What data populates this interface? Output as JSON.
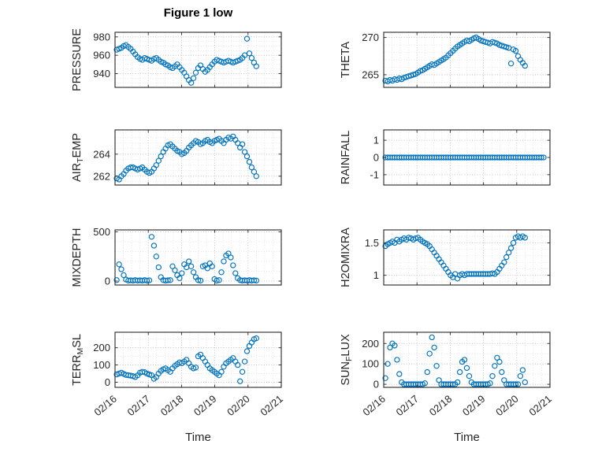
{
  "figure": {
    "title": "Figure 1 low",
    "xlabel": "Time",
    "x_tick_labels": [
      "02/16",
      "02/17",
      "02/18",
      "02/19",
      "02/20",
      "02/21"
    ],
    "marker_color": "#0072BD",
    "axis_color": "#262626",
    "grid_color": "#b4b4b4",
    "minor_grid_color": "#dadada"
  },
  "chart_data": [
    {
      "name": "PRESSURE",
      "type": "scatter",
      "label": {
        "pre": "PRESSURE",
        "sub": "",
        "post": ""
      },
      "xlim": [
        16,
        21
      ],
      "x_unit": "February date (02/16 = 16)",
      "x_start": 16.05,
      "x_step": 0.07,
      "ylim": [
        925,
        985
      ],
      "yticks": [
        940,
        960,
        980
      ],
      "ytick_labels": [
        "940",
        "960",
        "980"
      ],
      "yminor_step": 5,
      "y": [
        966,
        967,
        968,
        970,
        971,
        969,
        967,
        964,
        961,
        958,
        956,
        955,
        957,
        956,
        955,
        954,
        956,
        957,
        955,
        953,
        952,
        950,
        949,
        947,
        946,
        948,
        950,
        947,
        944,
        941,
        937,
        933,
        930,
        935,
        941,
        946,
        949,
        945,
        942,
        944,
        947,
        950,
        953,
        955,
        954,
        953,
        952,
        953,
        954,
        953,
        952,
        953,
        954,
        955,
        957,
        960,
        978,
        962,
        957,
        952,
        948
      ]
    },
    {
      "name": "THETA",
      "type": "scatter",
      "label": {
        "pre": "THETA",
        "sub": "",
        "post": ""
      },
      "xlim": [
        16,
        21
      ],
      "x_unit": "February date (02/16 = 16)",
      "x_start": 16.05,
      "x_step": 0.07,
      "ylim": [
        263.3,
        270.7
      ],
      "yticks": [
        265,
        270
      ],
      "ytick_labels": [
        "265",
        "270"
      ],
      "yminor_step": 1,
      "y": [
        264.2,
        264.1,
        264.3,
        264.2,
        264.4,
        264.3,
        264.5,
        264.4,
        264.6,
        264.7,
        264.8,
        264.9,
        265.0,
        265.1,
        265.3,
        265.5,
        265.6,
        265.8,
        266.0,
        266.2,
        266.4,
        266.3,
        266.5,
        266.7,
        266.9,
        267.1,
        267.3,
        267.6,
        267.9,
        268.2,
        268.5,
        268.8,
        269.0,
        269.2,
        269.4,
        269.6,
        269.5,
        269.7,
        269.9,
        270.0,
        269.8,
        269.6,
        269.5,
        269.4,
        269.3,
        269.2,
        269.4,
        269.3,
        269.2,
        269.0,
        268.9,
        268.8,
        268.7,
        268.6,
        266.5,
        268.4,
        268.2,
        267.5,
        267.0,
        266.6,
        266.2
      ]
    },
    {
      "name": "AIRTEMP",
      "type": "scatter",
      "label": {
        "pre": "AIR",
        "sub": "T",
        "post": "EMP"
      },
      "xlim": [
        16,
        21
      ],
      "x_unit": "February date (02/16 = 16)",
      "x_start": 16.05,
      "x_step": 0.07,
      "ylim": [
        261.2,
        266.2
      ],
      "yticks": [
        262,
        264
      ],
      "ytick_labels": [
        "262",
        "264"
      ],
      "yminor_step": 0.5,
      "y": [
        261.8,
        261.7,
        262.0,
        262.2,
        262.5,
        262.7,
        262.8,
        262.8,
        262.7,
        262.6,
        262.7,
        262.8,
        262.6,
        262.4,
        262.3,
        262.4,
        262.7,
        263.0,
        263.4,
        263.8,
        264.2,
        264.5,
        264.8,
        264.9,
        264.7,
        264.5,
        264.3,
        264.2,
        264.0,
        264.1,
        264.3,
        264.6,
        264.8,
        265.0,
        265.2,
        265.1,
        264.9,
        265.0,
        265.2,
        265.3,
        265.1,
        265.0,
        265.2,
        265.3,
        265.4,
        265.2,
        265.0,
        265.3,
        265.5,
        265.4,
        265.6,
        265.3,
        265.0,
        264.6,
        264.9,
        264.2,
        263.8,
        263.3,
        262.8,
        262.4,
        262.0
      ]
    },
    {
      "name": "RAINFALL",
      "type": "scatter",
      "label": {
        "pre": "RAINFALL",
        "sub": "",
        "post": ""
      },
      "xlim": [
        16,
        21
      ],
      "x_unit": "February date (02/16 = 16)",
      "x_start": 16.05,
      "x_step": 0.07,
      "ylim": [
        -1.6,
        1.6
      ],
      "yticks": [
        -1,
        0,
        1
      ],
      "ytick_labels": [
        "-1",
        "0",
        "1"
      ],
      "yminor_step": 0.5,
      "y": [
        0,
        0,
        0,
        0,
        0,
        0,
        0,
        0,
        0,
        0,
        0,
        0,
        0,
        0,
        0,
        0,
        0,
        0,
        0,
        0,
        0,
        0,
        0,
        0,
        0,
        0,
        0,
        0,
        0,
        0,
        0,
        0,
        0,
        0,
        0,
        0,
        0,
        0,
        0,
        0,
        0,
        0,
        0,
        0,
        0,
        0,
        0,
        0,
        0,
        0,
        0,
        0,
        0,
        0,
        0,
        0,
        0,
        0,
        0,
        0,
        0,
        0,
        0,
        0,
        0,
        0,
        0,
        0,
        0
      ]
    },
    {
      "name": "MIXDEPTH",
      "type": "scatter",
      "label": {
        "pre": "MIXDEPTH",
        "sub": "",
        "post": ""
      },
      "xlim": [
        16,
        21
      ],
      "x_unit": "February date (02/16 = 16)",
      "x_start": 16.05,
      "x_step": 0.07,
      "ylim": [
        -40,
        520
      ],
      "yticks": [
        0,
        500
      ],
      "ytick_labels": [
        "0",
        "500"
      ],
      "yminor_step": 100,
      "y": [
        10,
        170,
        120,
        60,
        15,
        5,
        8,
        5,
        10,
        5,
        8,
        5,
        10,
        5,
        8,
        450,
        360,
        250,
        140,
        40,
        10,
        5,
        8,
        10,
        150,
        110,
        60,
        30,
        80,
        170,
        140,
        200,
        150,
        90,
        40,
        10,
        5,
        150,
        160,
        130,
        180,
        150,
        20,
        5,
        10,
        90,
        200,
        260,
        280,
        240,
        160,
        80,
        30,
        10,
        5,
        8,
        5,
        10,
        5,
        8,
        5
      ]
    },
    {
      "name": "H2OMIXRA",
      "type": "scatter",
      "label": {
        "pre": "H2OMIXRA",
        "sub": "",
        "post": ""
      },
      "xlim": [
        16,
        21
      ],
      "x_unit": "February date (02/16 = 16)",
      "x_start": 16.05,
      "x_step": 0.07,
      "ylim": [
        0.85,
        1.7
      ],
      "yticks": [
        1,
        1.5
      ],
      "ytick_labels": [
        "1",
        "1.5"
      ],
      "yminor_step": 0.1,
      "y": [
        1.45,
        1.48,
        1.5,
        1.52,
        1.5,
        1.55,
        1.52,
        1.55,
        1.57,
        1.55,
        1.58,
        1.57,
        1.55,
        1.57,
        1.58,
        1.55,
        1.52,
        1.5,
        1.48,
        1.45,
        1.4,
        1.35,
        1.3,
        1.25,
        1.2,
        1.15,
        1.1,
        1.05,
        1.0,
        0.97,
        1.02,
        0.95,
        1.0,
        1.02,
        1.0,
        1.02,
        1.02,
        1.02,
        1.02,
        1.02,
        1.02,
        1.02,
        1.02,
        1.02,
        1.02,
        1.02,
        1.03,
        1.02,
        1.05,
        1.1,
        1.15,
        1.2,
        1.28,
        1.35,
        1.42,
        1.5,
        1.58,
        1.6,
        1.58,
        1.6,
        1.58
      ]
    },
    {
      "name": "TERRMSL",
      "type": "scatter",
      "label": {
        "pre": "TERR",
        "sub": "M",
        "post": "SL"
      },
      "xlim": [
        16,
        21
      ],
      "x_unit": "February date (02/16 = 16)",
      "x_start": 16.05,
      "x_step": 0.07,
      "ylim": [
        -30,
        290
      ],
      "yticks": [
        0,
        100,
        200
      ],
      "ytick_labels": [
        "0",
        "100",
        "200"
      ],
      "yminor_step": 50,
      "y": [
        45,
        50,
        55,
        48,
        42,
        40,
        38,
        35,
        30,
        40,
        55,
        60,
        58,
        50,
        45,
        40,
        20,
        30,
        50,
        65,
        75,
        80,
        70,
        60,
        80,
        95,
        105,
        115,
        110,
        120,
        130,
        110,
        90,
        80,
        85,
        150,
        160,
        140,
        120,
        100,
        80,
        70,
        60,
        50,
        40,
        60,
        90,
        110,
        120,
        130,
        140,
        120,
        100,
        5,
        60,
        120,
        180,
        210,
        230,
        250,
        255
      ]
    },
    {
      "name": "SUNFLUX",
      "type": "scatter",
      "label": {
        "pre": "SUN",
        "sub": "F",
        "post": "LUX"
      },
      "xlim": [
        16,
        21
      ],
      "x_unit": "February date (02/16 = 16)",
      "x_start": 16.05,
      "x_step": 0.07,
      "ylim": [
        -15,
        255
      ],
      "yticks": [
        0,
        100,
        200
      ],
      "ytick_labels": [
        "0",
        "100",
        "200"
      ],
      "yminor_step": 50,
      "y": [
        30,
        100,
        180,
        200,
        190,
        120,
        50,
        10,
        0,
        0,
        0,
        0,
        0,
        0,
        0,
        0,
        0,
        5,
        60,
        150,
        230,
        180,
        90,
        20,
        0,
        0,
        0,
        0,
        0,
        0,
        0,
        10,
        60,
        110,
        120,
        80,
        40,
        10,
        0,
        0,
        0,
        0,
        0,
        0,
        0,
        5,
        40,
        90,
        130,
        110,
        60,
        20,
        0,
        0,
        0,
        0,
        0,
        0,
        40,
        70,
        10
      ]
    }
  ]
}
